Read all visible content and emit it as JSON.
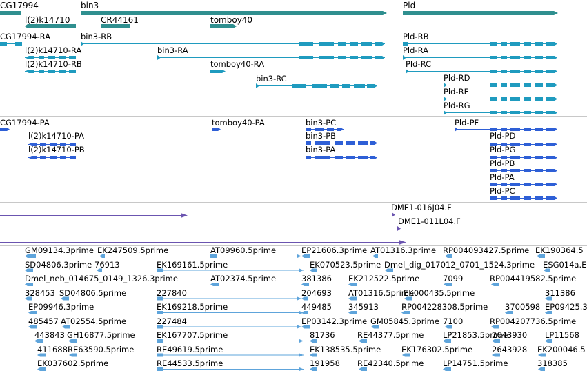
{
  "colors": {
    "gene": "#2f8f8f",
    "mrna": "#1f9bbf",
    "protein": "#2e5fd6",
    "clone": "#6b55b0",
    "est": "#5ea4db",
    "separator": "#c8c8c8"
  },
  "tracks": {
    "genes": {
      "labels": [
        "CG17994",
        "bin3",
        "Pld",
        "l(2)k14710",
        "CR44161",
        "tomboy40"
      ]
    },
    "transcripts": {
      "labels": [
        "CG17994-RA",
        "bin3-RB",
        "Pld-RB",
        "l(2)k14710-RA",
        "bin3-RA",
        "Pld-RA",
        "l(2)k14710-RB",
        "tomboy40-RA",
        "Pld-RC",
        "Pld-RD",
        "bin3-RC",
        "Pld-RF",
        "Pld-RG"
      ]
    },
    "proteins": {
      "labels": [
        "CG17994-PA",
        "tomboy40-PA",
        "bin3-PC",
        "Pld-PF",
        "l(2)k14710-PA",
        "bin3-PB",
        "Pld-PD",
        "l(2)k14710-PB",
        "bin3-PA",
        "Pld-PG",
        "Pld-PB",
        "Pld-PA",
        "Pld-PC"
      ]
    },
    "clones": {
      "labels": [
        "DME1-016J04.F",
        "DME1-011L04.F"
      ]
    },
    "ests": {
      "labels": [
        "GM09134.3prime",
        "EK247509.5prime",
        "AT09960.5prime",
        "EP21606.3prime",
        "AT01316.3prime",
        "RP004093427.5prime",
        "EK190364.5",
        "SD04806.3prime",
        "76913",
        "EK169161.5prime",
        "EK070523.5prime",
        "Dmel_dig_017012_0701_1524.3prime",
        "ESG014a.E",
        "Dmel_neb_014675_0149_1326.3prime",
        "AT02374.5prime",
        "381386",
        "EK212522.5prime",
        "7099",
        "RP004419582.5prime",
        "328453",
        "SD04806.5prime",
        "227840",
        "204693",
        "AT01316.5prime",
        "EK000435.5prime",
        "311386",
        "EP09946.3prime",
        "EK169218.5prime",
        "449485",
        "345913",
        "RP004228308.5prime",
        "3700598",
        "EP09425.3",
        "485457",
        "AT02554.5prime",
        "227484",
        "EP03142.3prime",
        "GM05845.3prime",
        "7100",
        "RP004207736.5prime",
        "443843",
        "GH16877.5prime",
        "EK167707.5prime",
        "81736",
        "RE44377.5prime",
        "LP21853.5prime",
        "2643930",
        "LP11568",
        "411688",
        "RE63590.5prime",
        "RE49619.5prime",
        "EK138535.5prime",
        "EK176302.5prime",
        "2643928",
        "EK200046.5",
        "EK037602.5prime",
        "RE44533.5prime",
        "191958",
        "RE42340.5prime",
        "LP14751.5prime",
        "318385"
      ]
    }
  }
}
